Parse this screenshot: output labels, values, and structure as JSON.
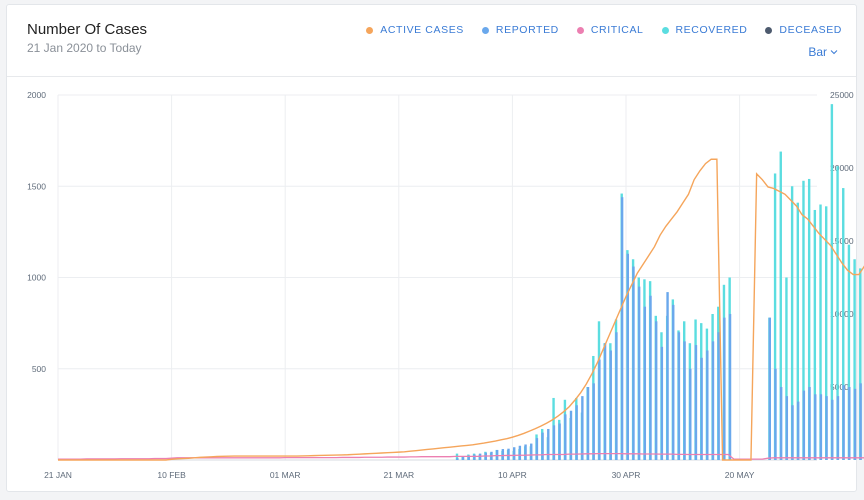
{
  "header": {
    "title": "Number Of Cases",
    "subtitle": "21 Jan 2020 to Today",
    "view_selector": "Bar"
  },
  "legend": [
    {
      "label": "ACTIVE CASES",
      "color": "#f5a55b"
    },
    {
      "label": "REPORTED",
      "color": "#6aa8ec"
    },
    {
      "label": "CRITICAL",
      "color": "#ec7fb1"
    },
    {
      "label": "RECOVERED",
      "color": "#5bdde0"
    },
    {
      "label": "DECEASED",
      "color": "#4d5a6e"
    }
  ],
  "chart_data": {
    "type": "bar",
    "x_ticks": [
      "21 JAN",
      "10 FEB",
      "01 MAR",
      "21 MAR",
      "10 APR",
      "30 APR",
      "20 MAY"
    ],
    "y_left_ticks": [
      "500",
      "1000",
      "1500",
      "2000"
    ],
    "y_right_ticks": [
      "5000",
      "10000",
      "15000",
      "20000",
      "25000"
    ],
    "ylim_left": [
      0,
      2000
    ],
    "ylim_right": [
      0,
      25000
    ],
    "grid": true,
    "start_day_label": "21 JAN",
    "series": [
      {
        "name": "REPORTED",
        "axis": "left",
        "kind": "bar",
        "color": "#6aa8ec",
        "values": [
          0,
          0,
          0,
          0,
          0,
          0,
          0,
          0,
          0,
          0,
          0,
          0,
          0,
          0,
          0,
          0,
          0,
          0,
          0,
          0,
          0,
          0,
          0,
          0,
          0,
          0,
          0,
          0,
          0,
          0,
          0,
          0,
          0,
          0,
          0,
          0,
          0,
          0,
          0,
          0,
          0,
          0,
          0,
          0,
          0,
          0,
          0,
          0,
          0,
          0,
          0,
          0,
          0,
          0,
          0,
          0,
          0,
          0,
          0,
          0,
          0,
          0,
          0,
          0,
          0,
          0,
          0,
          0,
          0,
          0,
          10,
          18,
          25,
          30,
          35,
          40,
          45,
          55,
          60,
          62,
          70,
          78,
          85,
          90,
          120,
          150,
          170,
          190,
          200,
          250,
          270,
          300,
          350,
          400,
          420,
          550,
          640,
          600,
          700,
          1440,
          1130,
          1060,
          950,
          840,
          900,
          760,
          620,
          920,
          850,
          700,
          650,
          500,
          630,
          560,
          600,
          650,
          700,
          780,
          800,
          0,
          0,
          0,
          0,
          0,
          0,
          780,
          500,
          400,
          350,
          300,
          320,
          380,
          400,
          360,
          360,
          350,
          330,
          350,
          410,
          400,
          390,
          420,
          500,
          520,
          540
        ]
      },
      {
        "name": "RECOVERED",
        "axis": "left",
        "kind": "bar",
        "color": "#5bdde0",
        "values": [
          0,
          0,
          0,
          0,
          0,
          0,
          0,
          0,
          0,
          0,
          0,
          0,
          0,
          0,
          0,
          0,
          0,
          0,
          0,
          0,
          0,
          0,
          0,
          0,
          0,
          0,
          0,
          0,
          0,
          0,
          0,
          0,
          0,
          0,
          0,
          0,
          0,
          0,
          0,
          0,
          0,
          0,
          0,
          0,
          0,
          0,
          0,
          0,
          0,
          0,
          0,
          0,
          0,
          0,
          0,
          0,
          0,
          0,
          0,
          0,
          0,
          0,
          0,
          0,
          0,
          0,
          0,
          0,
          0,
          0,
          35,
          20,
          30,
          35,
          30,
          45,
          40,
          55,
          50,
          55,
          50,
          60,
          75,
          75,
          140,
          170,
          125,
          340,
          220,
          330,
          230,
          340,
          260,
          400,
          570,
          760,
          640,
          640,
          770,
          1460,
          1150,
          1100,
          1000,
          990,
          980,
          790,
          700,
          790,
          880,
          710,
          760,
          640,
          770,
          750,
          720,
          800,
          840,
          960,
          1000,
          0,
          0,
          0,
          0,
          0,
          0,
          780,
          1570,
          1690,
          1000,
          1500,
          1410,
          1530,
          1540,
          1370,
          1400,
          1390,
          1950,
          1610,
          1490,
          1180,
          1100,
          1050,
          1000,
          500,
          520
        ]
      },
      {
        "name": "CRITICAL",
        "axis": "left",
        "kind": "line",
        "color": "#ec7fb1",
        "values": [
          5,
          5,
          5,
          5,
          5,
          6,
          6,
          6,
          6,
          6,
          6,
          7,
          7,
          7,
          7,
          7,
          7,
          8,
          8,
          8,
          10,
          12,
          12,
          12,
          12,
          12,
          12,
          12,
          12,
          12,
          12,
          12,
          12,
          12,
          12,
          12,
          12,
          12,
          12,
          12,
          13,
          13,
          13,
          13,
          13,
          13,
          13,
          13,
          13,
          13,
          14,
          14,
          14,
          14,
          15,
          15,
          15,
          15,
          16,
          16,
          16,
          16,
          17,
          17,
          18,
          18,
          18,
          18,
          18,
          18,
          20,
          20,
          20,
          20,
          20,
          22,
          22,
          24,
          24,
          25,
          25,
          26,
          26,
          27,
          28,
          28,
          30,
          30,
          30,
          30,
          32,
          32,
          33,
          34,
          34,
          35,
          35,
          35,
          35,
          35,
          34,
          34,
          34,
          33,
          33,
          33,
          32,
          32,
          32,
          31,
          31,
          30,
          30,
          30,
          30,
          30,
          30,
          30,
          30,
          5,
          5,
          5,
          5,
          5,
          5,
          10,
          12,
          12,
          12,
          12,
          12,
          12,
          12,
          12,
          12,
          12,
          12,
          12,
          12,
          12,
          12,
          12,
          12,
          12,
          12
        ]
      },
      {
        "name": "ACTIVE CASES",
        "axis": "right",
        "kind": "line",
        "color": "#f5a55b",
        "values": [
          0,
          0,
          0,
          0,
          0,
          0,
          0,
          0,
          0,
          0,
          0,
          0,
          0,
          0,
          0,
          0,
          0,
          0,
          0,
          0,
          50,
          80,
          100,
          120,
          150,
          180,
          200,
          220,
          240,
          250,
          260,
          270,
          270,
          270,
          270,
          270,
          270,
          270,
          270,
          270,
          270,
          270,
          270,
          280,
          290,
          300,
          310,
          320,
          330,
          340,
          350,
          360,
          380,
          400,
          420,
          440,
          460,
          480,
          500,
          520,
          540,
          560,
          600,
          640,
          680,
          720,
          760,
          800,
          840,
          880,
          920,
          960,
          1000,
          1040,
          1100,
          1160,
          1230,
          1300,
          1380,
          1460,
          1560,
          1680,
          1820,
          1980,
          2140,
          2320,
          2520,
          2740,
          3000,
          3300,
          3650,
          4100,
          4600,
          5200,
          5900,
          6700,
          7600,
          8500,
          9400,
          10300,
          11200,
          12000,
          12800,
          13400,
          14000,
          14600,
          15400,
          16000,
          16500,
          17000,
          17600,
          18200,
          19200,
          19800,
          20300,
          20600,
          20600,
          0,
          0,
          0,
          0,
          0,
          0,
          19600,
          19200,
          18700,
          18600,
          18400,
          18200,
          17800,
          17400,
          16800,
          16500,
          16000,
          15500,
          15100,
          14700,
          14100,
          13500,
          13000,
          12700,
          12700,
          13300
        ]
      }
    ]
  }
}
